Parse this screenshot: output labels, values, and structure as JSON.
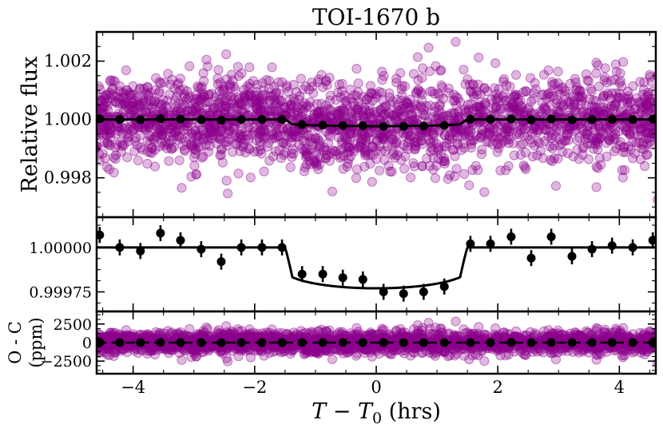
{
  "chart_data": {
    "type": "scatter",
    "title": "TOI-1670 b",
    "xlabel": "T − T0 (hrs)",
    "xlabel_parts": {
      "T": "T",
      "minus": " − ",
      "T0": "T",
      "sub": "0",
      "unit": " (hrs)"
    },
    "xlim": [
      -4.6,
      4.6
    ],
    "xticks": [
      -4,
      -2,
      0,
      2,
      4
    ],
    "xtick_labels": [
      "−4",
      "−2",
      "0",
      "2",
      "4"
    ],
    "colors": {
      "raw_points": "#8b008b",
      "binned": "#000000",
      "model": "#000000"
    },
    "transit": {
      "ingress": -1.5,
      "egress": 1.5,
      "depth": 0.00023,
      "center_flux": 0.99977
    },
    "panels": [
      {
        "name": "full",
        "ylabel": "Relative flux",
        "ylim": [
          0.99665,
          1.003
        ],
        "yticks": [
          0.998,
          1.0,
          1.002
        ],
        "ytick_labels": [
          "0.998",
          "1.000",
          "1.002"
        ],
        "scatter_sigma": 0.00075
      },
      {
        "name": "binned",
        "ylabel": "",
        "ylim": [
          0.99964,
          1.00017
        ],
        "yticks": [
          0.99975,
          1.0
        ],
        "ytick_labels": [
          "0.99975",
          "1.00000"
        ]
      },
      {
        "name": "residuals",
        "ylabel": "O - C",
        "ylabel2": "(ppm)",
        "ylim": [
          -4200,
          4200
        ],
        "yticks": [
          -2500,
          0,
          2500
        ],
        "ytick_labels": [
          "−2500",
          "0",
          "2500"
        ],
        "scatter_sigma_ppm": 750
      }
    ],
    "binned_points": {
      "x": [
        -4.55,
        -4.22,
        -3.88,
        -3.55,
        -3.22,
        -2.88,
        -2.55,
        -2.22,
        -1.88,
        -1.55,
        -1.22,
        -0.88,
        -0.55,
        -0.22,
        0.12,
        0.45,
        0.78,
        1.12,
        1.55,
        1.88,
        2.22,
        2.55,
        2.88,
        3.22,
        3.55,
        3.88,
        4.22,
        4.55
      ],
      "y": [
        1.00007,
        1.0,
        0.99998,
        1.00008,
        1.00004,
        0.99999,
        0.99992,
        1.0,
        1.0,
        1.0,
        0.99985,
        0.99985,
        0.99983,
        0.99982,
        0.99975,
        0.99974,
        0.99975,
        0.99978,
        1.00002,
        1.00002,
        1.00006,
        0.99994,
        1.00006,
        0.99995,
        0.99999,
        1.00001,
        1.0,
        1.00004
      ],
      "yerr": 4.5e-05
    }
  }
}
